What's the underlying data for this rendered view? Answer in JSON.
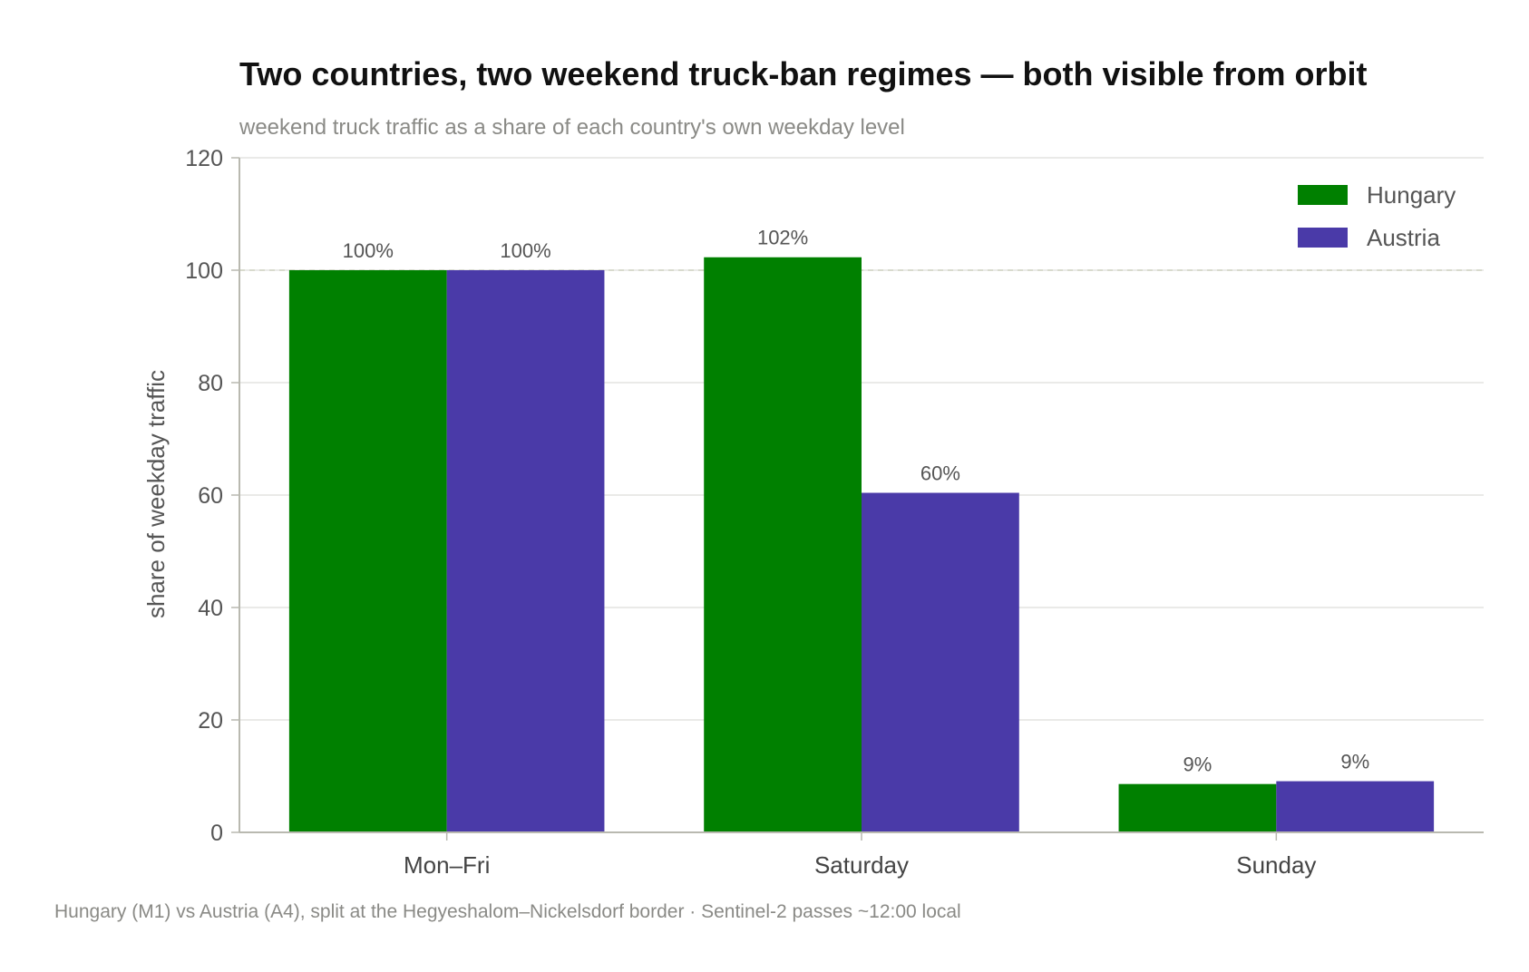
{
  "chart_data": {
    "type": "bar",
    "title": "Two countries, two weekend truck-ban regimes — both visible from orbit",
    "subtitle": "weekend truck traffic as a share of each country's own weekday level",
    "xlabel": "",
    "ylabel": "share of weekday traffic",
    "categories": [
      "Mon–Fri",
      "Saturday",
      "Sunday"
    ],
    "series": [
      {
        "name": "Hungary",
        "color": "#008000",
        "values": [
          100,
          102.3,
          8.6
        ],
        "labels": [
          "100%",
          "102%",
          "9%"
        ]
      },
      {
        "name": "Austria",
        "color": "#4a3aa8",
        "values": [
          100,
          60.4,
          9.1
        ],
        "labels": [
          "100%",
          "60%",
          "9%"
        ]
      }
    ],
    "ylim": [
      0,
      120
    ],
    "yticks": [
      0,
      20,
      40,
      60,
      80,
      100,
      120
    ],
    "ytick_labels": [
      "0",
      "20",
      "40",
      "60",
      "80",
      "100",
      "120"
    ],
    "reference_line": 100,
    "grid": true,
    "legend_position": "top-right",
    "footnote": "Hungary (M1) vs Austria (A4), split at the Hegyeshalom–Nickelsdorf border · Sentinel-2 passes ~12:00 local"
  }
}
